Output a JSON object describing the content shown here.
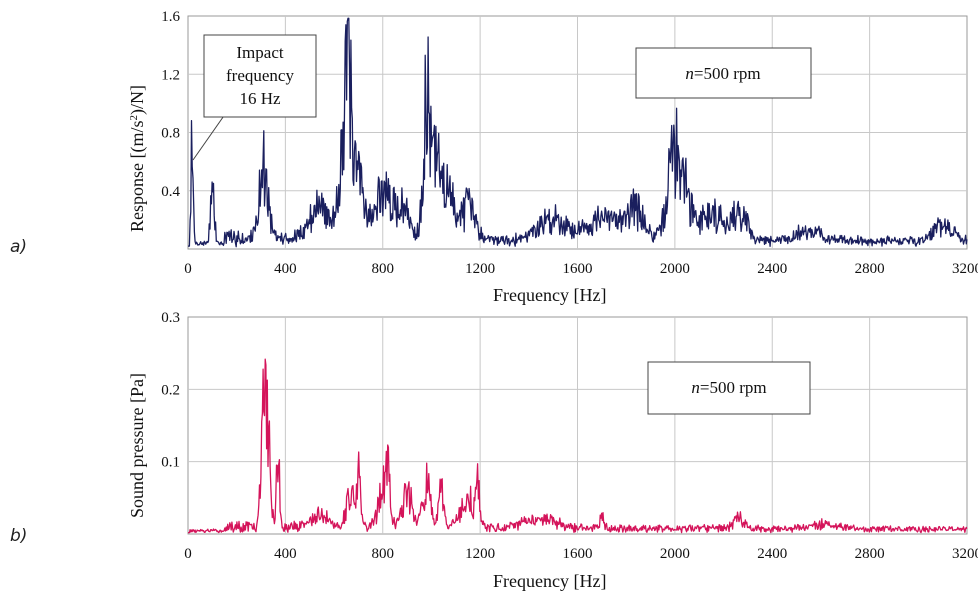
{
  "panel_labels": [
    "a)",
    "b)"
  ],
  "chart_data": [
    {
      "type": "line",
      "panel": "a)",
      "xlabel": "Frequency     [Hz]",
      "ylabel": "Response     [(m/s",
      "ylabel_sup": "2",
      "ylabel_tail": ")/N]",
      "xlim": [
        0,
        3200
      ],
      "ylim": [
        0,
        1.6
      ],
      "x_ticks": [
        0,
        400,
        800,
        1200,
        1600,
        2000,
        2400,
        2800,
        3200
      ],
      "y_ticks": [
        0.4,
        0.8,
        1.2,
        1.6
      ],
      "y_tick_labels": [
        "0.4",
        "0.8",
        "1.2",
        "1.6"
      ],
      "grid": true,
      "color": "#1a1f5e",
      "baseline": 0.04,
      "noise": 0.1,
      "peaks": [
        {
          "x": 16,
          "y": 0.8,
          "w": 5
        },
        {
          "x": 100,
          "y": 0.5,
          "w": 8
        },
        {
          "x": 310,
          "y": 0.66,
          "w": 18
        },
        {
          "x": 540,
          "y": 0.3,
          "w": 40
        },
        {
          "x": 640,
          "y": 0.95,
          "w": 20
        },
        {
          "x": 660,
          "y": 1.25,
          "w": 8
        },
        {
          "x": 700,
          "y": 0.6,
          "w": 25
        },
        {
          "x": 800,
          "y": 0.45,
          "w": 30
        },
        {
          "x": 880,
          "y": 0.3,
          "w": 30
        },
        {
          "x": 980,
          "y": 0.98,
          "w": 15
        },
        {
          "x": 1010,
          "y": 0.55,
          "w": 25
        },
        {
          "x": 1060,
          "y": 0.45,
          "w": 30
        },
        {
          "x": 1150,
          "y": 0.3,
          "w": 30
        },
        {
          "x": 1500,
          "y": 0.2,
          "w": 60
        },
        {
          "x": 1700,
          "y": 0.2,
          "w": 60
        },
        {
          "x": 1830,
          "y": 0.3,
          "w": 40
        },
        {
          "x": 1990,
          "y": 0.6,
          "w": 25
        },
        {
          "x": 2030,
          "y": 0.45,
          "w": 30
        },
        {
          "x": 2150,
          "y": 0.25,
          "w": 60
        },
        {
          "x": 2270,
          "y": 0.22,
          "w": 30
        },
        {
          "x": 2550,
          "y": 0.1,
          "w": 50
        },
        {
          "x": 3100,
          "y": 0.14,
          "w": 40
        }
      ],
      "annotations": [
        {
          "lines": [
            "Impact",
            "frequency",
            "16 Hz"
          ]
        },
        {
          "italic": "n",
          "text": "=500 rpm"
        }
      ]
    },
    {
      "type": "line",
      "panel": "b)",
      "xlabel": "Frequency     [Hz]",
      "ylabel": "Sound pressure     [Pa]",
      "xlim": [
        0,
        3200
      ],
      "ylim": [
        0,
        0.3
      ],
      "x_ticks": [
        0,
        400,
        800,
        1200,
        1600,
        2000,
        2400,
        2800,
        3200
      ],
      "y_ticks": [
        0.1,
        0.2,
        0.3
      ],
      "y_tick_labels": [
        "0.1",
        "0.2",
        "0.3"
      ],
      "grid": true,
      "color": "#d4145a",
      "baseline": 0.004,
      "noise": 0.015,
      "peaks": [
        {
          "x": 310,
          "y": 0.2,
          "w": 10
        },
        {
          "x": 330,
          "y": 0.15,
          "w": 10
        },
        {
          "x": 370,
          "y": 0.13,
          "w": 6
        },
        {
          "x": 540,
          "y": 0.02,
          "w": 40
        },
        {
          "x": 670,
          "y": 0.06,
          "w": 20
        },
        {
          "x": 700,
          "y": 0.09,
          "w": 8
        },
        {
          "x": 800,
          "y": 0.07,
          "w": 20
        },
        {
          "x": 820,
          "y": 0.09,
          "w": 8
        },
        {
          "x": 900,
          "y": 0.06,
          "w": 25
        },
        {
          "x": 980,
          "y": 0.08,
          "w": 15
        },
        {
          "x": 1040,
          "y": 0.07,
          "w": 10
        },
        {
          "x": 1150,
          "y": 0.05,
          "w": 30
        },
        {
          "x": 1190,
          "y": 0.06,
          "w": 8
        },
        {
          "x": 1450,
          "y": 0.02,
          "w": 60
        },
        {
          "x": 1700,
          "y": 0.03,
          "w": 8
        },
        {
          "x": 2260,
          "y": 0.022,
          "w": 20
        },
        {
          "x": 2600,
          "y": 0.008,
          "w": 60
        }
      ],
      "annotations": [
        {
          "italic": "n",
          "text": "=500 rpm"
        }
      ]
    }
  ]
}
